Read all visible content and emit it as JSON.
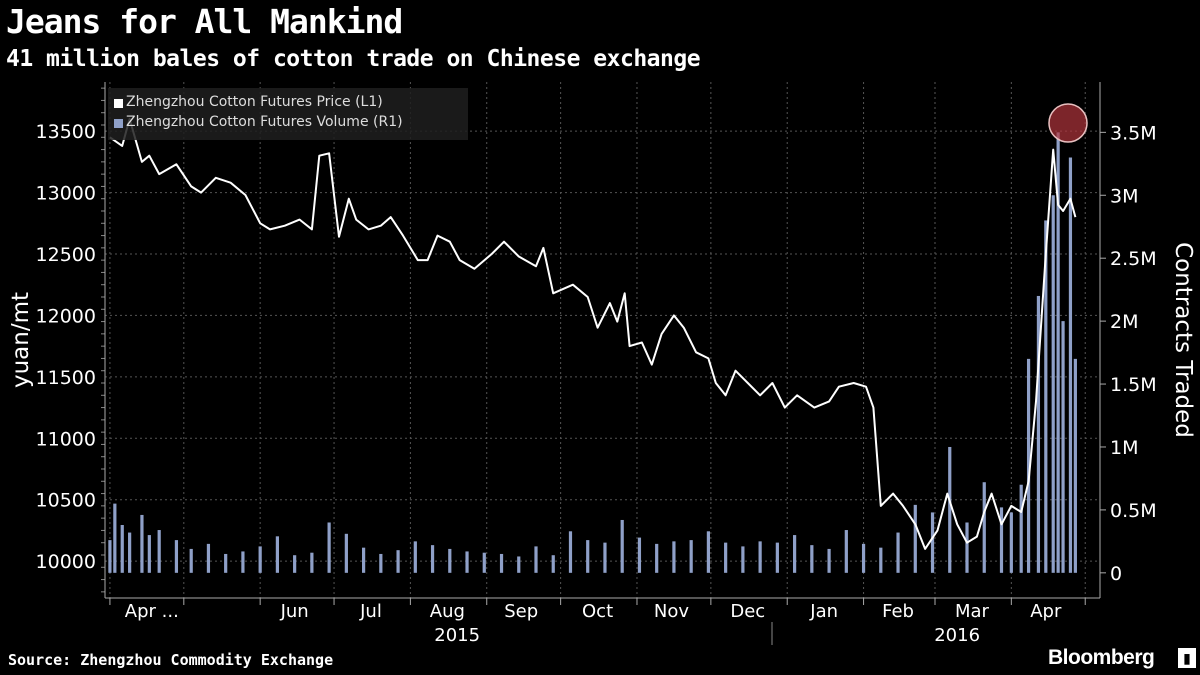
{
  "header": {
    "title": "Jeans for All Mankind",
    "subtitle": "41 million bales of cotton trade on Chinese exchange"
  },
  "footer": {
    "source": "Source: Zhengzhou Commodity Exchange",
    "brand": "Bloomberg"
  },
  "colors": {
    "background": "#000000",
    "price_line": "#ffffff",
    "volume_bars": "#8fa0c8",
    "highlight": "#b0343c"
  },
  "chart_data": {
    "type": "line",
    "title": "Jeans for All Mankind",
    "subtitle": "41 million bales of cotton trade on Chinese exchange",
    "ylabel_left": "yuan/mt",
    "ylabel_right": "Contracts Traded",
    "ylim_left": [
      9700,
      13900
    ],
    "ylim_right": [
      -200000,
      3900000
    ],
    "yticks_left": [
      "10000",
      "10500",
      "11000",
      "11500",
      "12000",
      "12500",
      "13000",
      "13500"
    ],
    "yticks_right": [
      "0",
      "0.5M",
      "1M",
      "1.5M",
      "2M",
      "2.5M",
      "3M",
      "3.5M"
    ],
    "x_month_labels": [
      "Apr ...",
      "Jun",
      "Jul",
      "Aug",
      "Sep",
      "Oct",
      "Nov",
      "Dec",
      "Jan",
      "Feb",
      "Mar",
      "Apr"
    ],
    "x_year_labels": [
      "2015",
      "2016"
    ],
    "grid": true,
    "legend_position": "top-left",
    "legend": [
      {
        "name": "Zhengzhou Cotton Futures Price (L1)",
        "icon": "white-square"
      },
      {
        "name": "Zhengzhou Cotton Futures Volume (R1)",
        "icon": "blue-square"
      }
    ],
    "series": [
      {
        "name": "Zhengzhou Cotton Futures Price (L1)",
        "type": "line",
        "axis": "left",
        "points": [
          [
            "2015-04-01",
            13450
          ],
          [
            "2015-04-06",
            13380
          ],
          [
            "2015-04-09",
            13600
          ],
          [
            "2015-04-14",
            13250
          ],
          [
            "2015-04-17",
            13300
          ],
          [
            "2015-04-21",
            13150
          ],
          [
            "2015-04-28",
            13230
          ],
          [
            "2015-05-04",
            13050
          ],
          [
            "2015-05-08",
            13000
          ],
          [
            "2015-05-14",
            13120
          ],
          [
            "2015-05-20",
            13080
          ],
          [
            "2015-05-26",
            12980
          ],
          [
            "2015-06-01",
            12750
          ],
          [
            "2015-06-05",
            12700
          ],
          [
            "2015-06-11",
            12730
          ],
          [
            "2015-06-17",
            12780
          ],
          [
            "2015-06-22",
            12700
          ],
          [
            "2015-06-25",
            13300
          ],
          [
            "2015-06-29",
            13320
          ],
          [
            "2015-07-03",
            12640
          ],
          [
            "2015-07-07",
            12950
          ],
          [
            "2015-07-10",
            12780
          ],
          [
            "2015-07-15",
            12700
          ],
          [
            "2015-07-20",
            12730
          ],
          [
            "2015-07-24",
            12800
          ],
          [
            "2015-07-29",
            12650
          ],
          [
            "2015-08-04",
            12450
          ],
          [
            "2015-08-08",
            12450
          ],
          [
            "2015-08-12",
            12650
          ],
          [
            "2015-08-17",
            12600
          ],
          [
            "2015-08-21",
            12450
          ],
          [
            "2015-08-27",
            12380
          ],
          [
            "2015-09-03",
            12500
          ],
          [
            "2015-09-08",
            12600
          ],
          [
            "2015-09-14",
            12480
          ],
          [
            "2015-09-21",
            12400
          ],
          [
            "2015-09-24",
            12550
          ],
          [
            "2015-09-28",
            12180
          ],
          [
            "2015-10-06",
            12250
          ],
          [
            "2015-10-12",
            12150
          ],
          [
            "2015-10-16",
            11900
          ],
          [
            "2015-10-21",
            12100
          ],
          [
            "2015-10-24",
            11950
          ],
          [
            "2015-10-27",
            12180
          ],
          [
            "2015-10-29",
            11750
          ],
          [
            "2015-11-03",
            11780
          ],
          [
            "2015-11-07",
            11600
          ],
          [
            "2015-11-11",
            11850
          ],
          [
            "2015-11-16",
            12000
          ],
          [
            "2015-11-20",
            11900
          ],
          [
            "2015-11-25",
            11700
          ],
          [
            "2015-11-30",
            11650
          ],
          [
            "2015-12-03",
            11450
          ],
          [
            "2015-12-07",
            11350
          ],
          [
            "2015-12-11",
            11550
          ],
          [
            "2015-12-16",
            11450
          ],
          [
            "2015-12-21",
            11350
          ],
          [
            "2015-12-26",
            11450
          ],
          [
            "2015-12-31",
            11250
          ],
          [
            "2016-01-05",
            11350
          ],
          [
            "2016-01-12",
            11250
          ],
          [
            "2016-01-18",
            11300
          ],
          [
            "2016-01-22",
            11420
          ],
          [
            "2016-01-28",
            11450
          ],
          [
            "2016-02-02",
            11420
          ],
          [
            "2016-02-05",
            11250
          ],
          [
            "2016-02-08",
            10450
          ],
          [
            "2016-02-13",
            10550
          ],
          [
            "2016-02-17",
            10450
          ],
          [
            "2016-02-22",
            10300
          ],
          [
            "2016-02-26",
            10100
          ],
          [
            "2016-03-02",
            10250
          ],
          [
            "2016-03-06",
            10550
          ],
          [
            "2016-03-10",
            10300
          ],
          [
            "2016-03-14",
            10150
          ],
          [
            "2016-03-18",
            10200
          ],
          [
            "2016-03-21",
            10400
          ],
          [
            "2016-03-24",
            10550
          ],
          [
            "2016-03-28",
            10300
          ],
          [
            "2016-04-01",
            10450
          ],
          [
            "2016-04-05",
            10400
          ],
          [
            "2016-04-08",
            10650
          ],
          [
            "2016-04-11",
            11300
          ],
          [
            "2016-04-15",
            12500
          ],
          [
            "2016-04-18",
            13350
          ],
          [
            "2016-04-20",
            12900
          ],
          [
            "2016-04-22",
            12850
          ],
          [
            "2016-04-25",
            12950
          ],
          [
            "2016-04-27",
            12800
          ]
        ]
      },
      {
        "name": "Zhengzhou Cotton Futures Volume (R1)",
        "type": "bar",
        "axis": "right",
        "points": [
          [
            "2015-04-01",
            260000
          ],
          [
            "2015-04-03",
            550000
          ],
          [
            "2015-04-06",
            380000
          ],
          [
            "2015-04-09",
            320000
          ],
          [
            "2015-04-14",
            460000
          ],
          [
            "2015-04-17",
            300000
          ],
          [
            "2015-04-21",
            340000
          ],
          [
            "2015-04-28",
            260000
          ],
          [
            "2015-05-04",
            190000
          ],
          [
            "2015-05-11",
            230000
          ],
          [
            "2015-05-18",
            150000
          ],
          [
            "2015-05-25",
            170000
          ],
          [
            "2015-06-01",
            210000
          ],
          [
            "2015-06-08",
            290000
          ],
          [
            "2015-06-15",
            140000
          ],
          [
            "2015-06-22",
            160000
          ],
          [
            "2015-06-29",
            400000
          ],
          [
            "2015-07-06",
            310000
          ],
          [
            "2015-07-13",
            200000
          ],
          [
            "2015-07-20",
            150000
          ],
          [
            "2015-07-27",
            180000
          ],
          [
            "2015-08-03",
            250000
          ],
          [
            "2015-08-10",
            220000
          ],
          [
            "2015-08-17",
            190000
          ],
          [
            "2015-08-24",
            170000
          ],
          [
            "2015-08-31",
            160000
          ],
          [
            "2015-09-07",
            150000
          ],
          [
            "2015-09-14",
            130000
          ],
          [
            "2015-09-21",
            210000
          ],
          [
            "2015-09-28",
            140000
          ],
          [
            "2015-10-05",
            330000
          ],
          [
            "2015-10-12",
            260000
          ],
          [
            "2015-10-19",
            240000
          ],
          [
            "2015-10-26",
            420000
          ],
          [
            "2015-11-02",
            280000
          ],
          [
            "2015-11-09",
            230000
          ],
          [
            "2015-11-16",
            250000
          ],
          [
            "2015-11-23",
            260000
          ],
          [
            "2015-11-30",
            330000
          ],
          [
            "2015-12-07",
            240000
          ],
          [
            "2015-12-14",
            210000
          ],
          [
            "2015-12-21",
            250000
          ],
          [
            "2015-12-28",
            240000
          ],
          [
            "2016-01-04",
            300000
          ],
          [
            "2016-01-11",
            220000
          ],
          [
            "2016-01-18",
            190000
          ],
          [
            "2016-01-25",
            340000
          ],
          [
            "2016-02-01",
            230000
          ],
          [
            "2016-02-08",
            200000
          ],
          [
            "2016-02-15",
            320000
          ],
          [
            "2016-02-22",
            540000
          ],
          [
            "2016-02-29",
            480000
          ],
          [
            "2016-03-07",
            1000000
          ],
          [
            "2016-03-14",
            400000
          ],
          [
            "2016-03-21",
            720000
          ],
          [
            "2016-03-28",
            520000
          ],
          [
            "2016-04-01",
            480000
          ],
          [
            "2016-04-05",
            700000
          ],
          [
            "2016-04-08",
            1700000
          ],
          [
            "2016-04-12",
            2200000
          ],
          [
            "2016-04-15",
            2800000
          ],
          [
            "2016-04-18",
            3000000
          ],
          [
            "2016-04-20",
            3500000
          ],
          [
            "2016-04-22",
            2000000
          ],
          [
            "2016-04-25",
            3300000
          ],
          [
            "2016-04-27",
            1700000
          ]
        ]
      }
    ],
    "annotations": [
      {
        "type": "circle",
        "near": "2016-04-20 volume peak",
        "color": "#b0343c"
      }
    ]
  }
}
